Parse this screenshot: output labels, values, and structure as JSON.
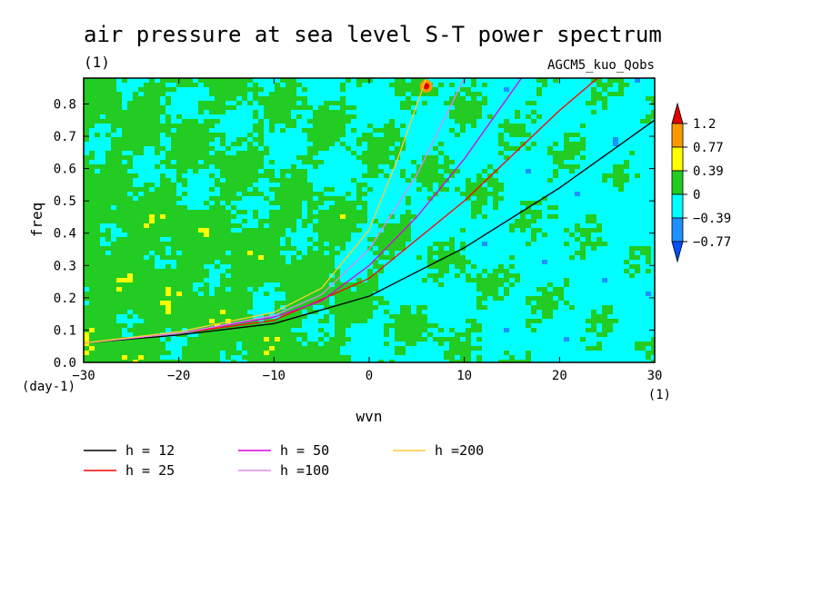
{
  "chart_data": {
    "type": "heatmap",
    "title": "air pressure at sea level S-T power spectrum",
    "subtitle": "(1)",
    "model_label": "AGCM5_kuo_Qobs",
    "xlabel": "wvn",
    "ylabel": "freq",
    "x_unit_label": "(1)",
    "y_unit_label": "(day-1)",
    "xlim": [
      -30,
      30
    ],
    "ylim": [
      0,
      0.88
    ],
    "xticks": [
      -30,
      -20,
      -10,
      0,
      10,
      20,
      30
    ],
    "yticks": [
      0.0,
      0.1,
      0.2,
      0.3,
      0.4,
      0.5,
      0.6,
      0.7,
      0.8
    ],
    "ytick_labels": [
      "0.0",
      "0.1",
      "0.2",
      "0.3",
      "0.4",
      "0.5",
      "0.6",
      "0.7",
      "0.8"
    ],
    "colorbar": {
      "levels": [
        "1.2",
        "0.77",
        "0.39",
        "0",
        "-0.39",
        "-0.77"
      ],
      "colors": [
        "#e00000",
        "#ff9900",
        "#ffff00",
        "#22cc22",
        "#00ffff",
        "#1e90ff",
        "#0050ff"
      ]
    },
    "field_description_values": {
      "green_region": "x<-5 broadly, low frequencies",
      "cyan_region": "x>0 broadly"
    },
    "series": [
      {
        "name": "h = 12",
        "color": "#000000",
        "x": [
          -30,
          -20,
          -10,
          0,
          10,
          20,
          30
        ],
        "y": [
          0.06,
          0.085,
          0.12,
          0.205,
          0.355,
          0.54,
          0.75
        ]
      },
      {
        "name": "h = 25",
        "color": "#ff0000",
        "x": [
          -30,
          -20,
          -10,
          0,
          10,
          20,
          24
        ],
        "y": [
          0.06,
          0.09,
          0.13,
          0.26,
          0.5,
          0.78,
          0.88
        ]
      },
      {
        "name": "h = 50",
        "color": "#dd00dd",
        "x": [
          -30,
          -20,
          -10,
          -5,
          0,
          5,
          10,
          16
        ],
        "y": [
          0.06,
          0.09,
          0.14,
          0.19,
          0.3,
          0.45,
          0.63,
          0.88
        ]
      },
      {
        "name": "h =100",
        "color": "#dd88ee",
        "x": [
          -30,
          -20,
          -10,
          -5,
          0,
          5,
          10
        ],
        "y": [
          0.06,
          0.09,
          0.145,
          0.21,
          0.35,
          0.58,
          0.88
        ]
      },
      {
        "name": "h =200",
        "color": "#ffcc33",
        "x": [
          -30,
          -20,
          -10,
          -5,
          0,
          3,
          6
        ],
        "y": [
          0.06,
          0.095,
          0.155,
          0.23,
          0.41,
          0.63,
          0.88
        ]
      }
    ]
  }
}
